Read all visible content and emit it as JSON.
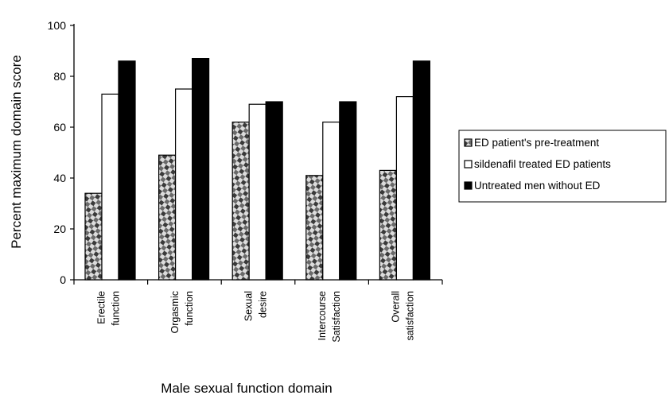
{
  "chart_data": {
    "type": "bar",
    "title": "",
    "xlabel": "Male sexual function domain",
    "ylabel": "Percent maximum domain score",
    "ylim": [
      0,
      100
    ],
    "yticks": [
      "0",
      "20",
      "40",
      "60",
      "80",
      "100"
    ],
    "categories": [
      [
        "Erectile",
        "function"
      ],
      [
        "Orgasmic",
        "function"
      ],
      [
        "Sexual",
        "desire"
      ],
      [
        "Intercourse",
        "Satisfaction"
      ],
      [
        "Overall",
        "satisfaction"
      ]
    ],
    "series": [
      {
        "name": "ED patient's pre-treatment",
        "style": "patterned",
        "values": [
          34,
          49,
          62,
          41,
          43
        ]
      },
      {
        "name": "sildenafil treated ED patients",
        "style": "white",
        "values": [
          73,
          75,
          69,
          62,
          72
        ]
      },
      {
        "name": "Untreated men without ED",
        "style": "black",
        "values": [
          86,
          87,
          70,
          70,
          86
        ]
      }
    ],
    "grid": false,
    "legend_position": "right"
  }
}
